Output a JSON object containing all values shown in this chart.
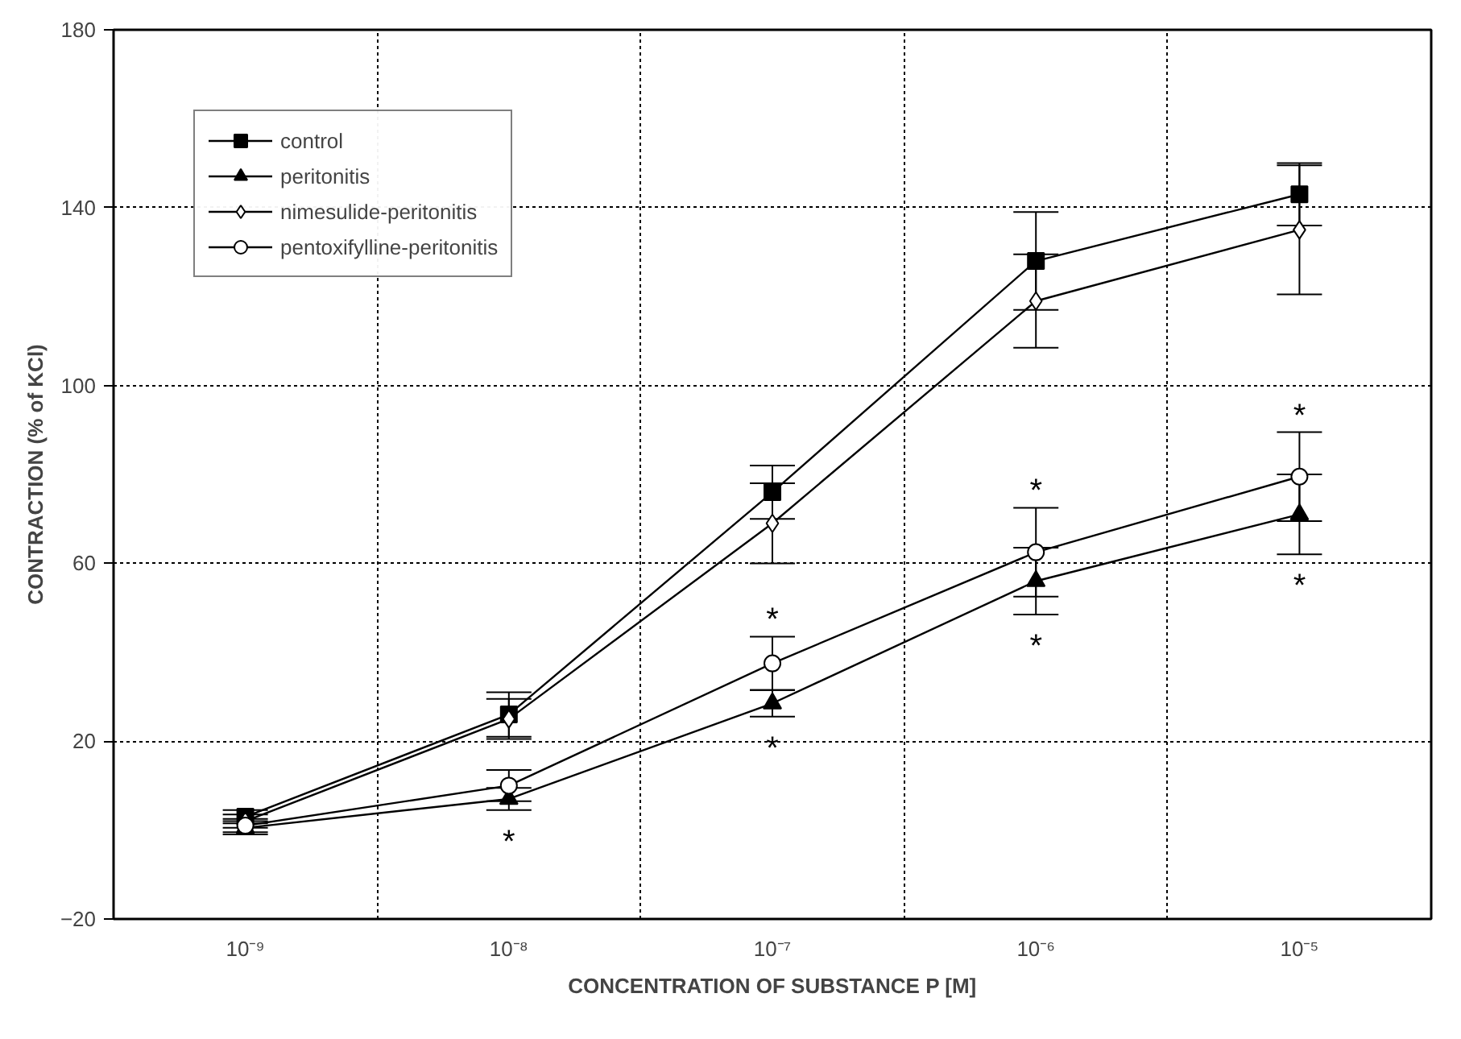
{
  "chart_data": {
    "type": "line",
    "xlabel": "CONCENTRATION OF SUBSTANCE P [M]",
    "ylabel": "CONTRACTION (% of KCl)",
    "x": [
      1e-09,
      1e-08,
      1e-07,
      1e-06,
      1e-05
    ],
    "log": "x",
    "xlim": [
      3.162e-10,
      3.162e-05
    ],
    "xticks": [
      {
        "value": 1e-09,
        "label": "10⁻⁹"
      },
      {
        "value": 3.162e-09,
        "label": null
      },
      {
        "value": 1e-08,
        "label": "10⁻⁸"
      },
      {
        "value": 3.162e-08,
        "label": null
      },
      {
        "value": 1e-07,
        "label": "10⁻⁷"
      },
      {
        "value": 3.162e-07,
        "label": null
      },
      {
        "value": 1e-06,
        "label": "10⁻⁶"
      },
      {
        "value": 3.162e-06,
        "label": null
      },
      {
        "value": 1e-05,
        "label": "10⁻⁵"
      }
    ],
    "ylim": [
      -20,
      180
    ],
    "yticks": [
      -20,
      20,
      60,
      100,
      140,
      180
    ],
    "grid": true,
    "legend": "top left",
    "line_style": "solid",
    "series": [
      {
        "name": "control",
        "color": "#000000",
        "marker": "square",
        "values": [
          3,
          26,
          76,
          128,
          143
        ],
        "errors": [
          1.5,
          5,
          6,
          11,
          7
        ]
      },
      {
        "name": "peritonitis",
        "color": "#000000",
        "marker": "triangle",
        "values": [
          0.5,
          7,
          28.5,
          56,
          71
        ],
        "errors": [
          1.5,
          2.5,
          3,
          7.5,
          9
        ]
      },
      {
        "name": "nimesulide-peritonitis",
        "color": "#000000",
        "marker": "diamond",
        "values": [
          2,
          25,
          69,
          119,
          135
        ],
        "errors": [
          1.5,
          4.5,
          9,
          10.5,
          14.5
        ]
      },
      {
        "name": "pentoxifylline-peritonitis",
        "color": "#000000",
        "marker": "circle",
        "values": [
          1,
          10,
          37.5,
          62.5,
          79.5
        ],
        "errors": [
          1.5,
          3.5,
          6,
          10,
          10
        ]
      }
    ],
    "annotations": [
      {
        "text": "*",
        "x": 1e-08,
        "y": 4.5
      },
      {
        "text": "*",
        "x": 1e-07,
        "y": 43.5
      },
      {
        "text": "*",
        "x": 1e-07,
        "y": 25.5
      },
      {
        "text": "*",
        "x": 1e-06,
        "y": 72.5
      },
      {
        "text": "*",
        "x": 1e-06,
        "y": 48.5
      },
      {
        "text": "*",
        "x": 1e-05,
        "y": 89.5
      },
      {
        "text": "*",
        "x": 1e-05,
        "y": 62
      }
    ]
  }
}
